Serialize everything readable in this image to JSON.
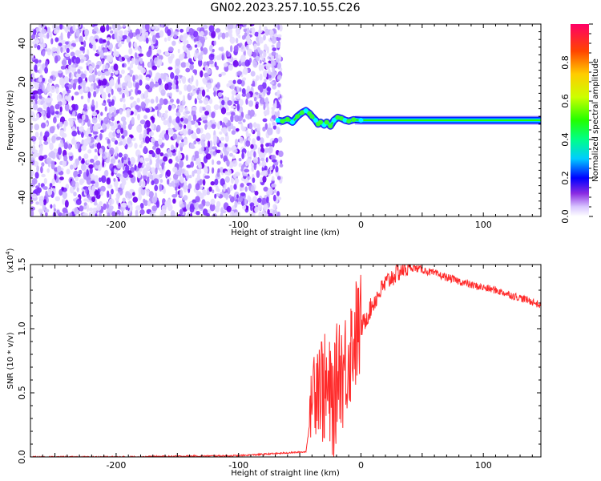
{
  "title": "GN02.2023.257.10.55.C26",
  "chart_data": [
    {
      "type": "heatmap",
      "title": "GN02.2023.257.10.55.C26",
      "xlabel": "Height of straight line (km)",
      "ylabel": "Frequency (Hz)",
      "xlim": [
        -270,
        147
      ],
      "ylim": [
        -50,
        50
      ],
      "xticks": [
        -200,
        -100,
        0,
        100
      ],
      "yticks": [
        -40,
        -20,
        0,
        20,
        40
      ],
      "noise_region_x": [
        -270,
        -68
      ],
      "signal_ridge": {
        "x": [
          -68,
          -64,
          -60,
          -56,
          -52,
          -48,
          -45,
          -42,
          -40,
          -37,
          -35,
          -33,
          -30,
          -28,
          -25,
          -22,
          -19,
          -16,
          -13,
          -10,
          -6,
          0,
          50,
          100,
          147
        ],
        "freq": [
          0,
          -0.5,
          0.5,
          -1,
          2,
          4,
          5,
          3.5,
          2,
          0,
          -2,
          -1,
          -2.5,
          -1,
          -3,
          0,
          1.5,
          1,
          0,
          -0.5,
          0.3,
          0,
          0,
          0,
          0
        ]
      },
      "colorbar": {
        "label": "Normalized spectral amplitude",
        "ticks": [
          "0.0",
          "0.2",
          "0.4",
          "0.6",
          "0.8"
        ],
        "range": [
          0,
          1
        ]
      },
      "grid": false
    },
    {
      "type": "line",
      "xlabel": "Height of straight line (km)",
      "ylabel": "SNR (10 * v/v)",
      "y_multiplier": "(x10",
      "y_multiplier_exp": "4",
      "y_multiplier_close": ")",
      "xlim": [
        -270,
        147
      ],
      "ylim": [
        0,
        1.5
      ],
      "xticks": [
        -200,
        -100,
        0,
        100
      ],
      "yticks": [
        "0.0",
        "0.5",
        "1.0",
        "1.5"
      ],
      "series": [
        {
          "color": "#ff2a2a",
          "x": [
            -270,
            -200,
            -100,
            -45,
            -42,
            -40,
            -38,
            -35,
            -32,
            -28,
            -25,
            -22,
            -18,
            -15,
            -10,
            -5,
            0,
            5,
            10,
            15,
            20,
            25,
            30,
            35,
            40,
            45,
            50,
            60,
            70,
            80,
            90,
            100,
            110,
            120,
            130,
            140,
            147
          ],
          "y": [
            0.0,
            0.0,
            0.01,
            0.04,
            0.25,
            0.5,
            0.6,
            0.65,
            0.55,
            0.5,
            0.45,
            0.4,
            0.75,
            0.65,
            0.8,
            0.95,
            1.0,
            1.1,
            1.2,
            1.28,
            1.35,
            1.4,
            1.44,
            1.47,
            1.48,
            1.47,
            1.46,
            1.43,
            1.4,
            1.37,
            1.34,
            1.32,
            1.3,
            1.27,
            1.24,
            1.21,
            1.18
          ]
        }
      ],
      "grid": false
    }
  ]
}
